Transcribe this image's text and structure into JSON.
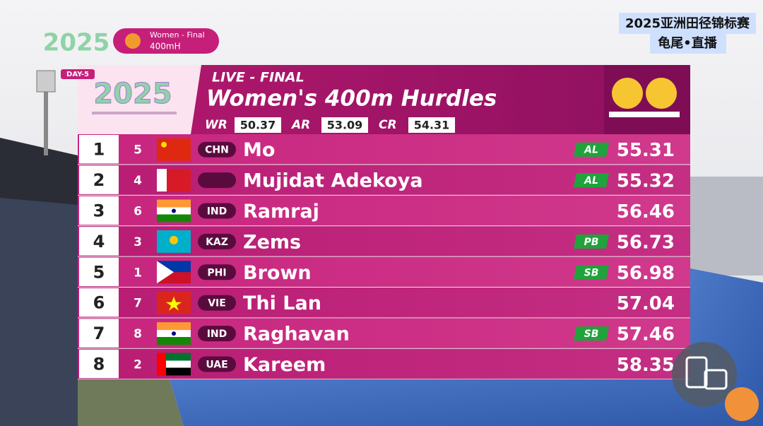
{
  "top_logo": {
    "year": "2025",
    "event": "Women - Final",
    "discipline": "400mH"
  },
  "watermark": {
    "line1": "2025亚洲田径锦标赛",
    "line2": "龟尾•直播"
  },
  "board": {
    "day": "DAY-5",
    "logo": "2025",
    "status": "LIVE - FINAL",
    "title": "Women's 400m Hurdles",
    "records": [
      {
        "label": "WR",
        "time": 50.37
      },
      {
        "label": "AR",
        "time": 53.09
      },
      {
        "label": "CR",
        "time": 54.31
      }
    ],
    "results": [
      {
        "rank": 1,
        "lane": 5,
        "country": "CHN",
        "name": "Mo",
        "badge": "AL",
        "time": 55.31
      },
      {
        "rank": 2,
        "lane": 4,
        "name": "Mujidat Adekoya",
        "badge": "AL",
        "time": 55.32
      },
      {
        "rank": 3,
        "lane": 6,
        "country": "IND",
        "name": "Ramraj",
        "time": 56.46
      },
      {
        "rank": 4,
        "lane": 3,
        "country": "KAZ",
        "name": "Zems",
        "badge": "PB",
        "time": 56.73
      },
      {
        "rank": 5,
        "lane": 1,
        "country": "PHI",
        "name": "Brown",
        "badge": "SB",
        "time": 56.98
      },
      {
        "rank": 6,
        "lane": 7,
        "country": "VIE",
        "name": "Thi Lan",
        "time": 57.04
      },
      {
        "rank": 7,
        "lane": 8,
        "country": "IND",
        "name": "Raghavan",
        "badge": "SB",
        "time": 57.46
      },
      {
        "rank": 8,
        "lane": 2,
        "country": "UAE",
        "name": "Kareem",
        "time": 58.35
      }
    ]
  }
}
